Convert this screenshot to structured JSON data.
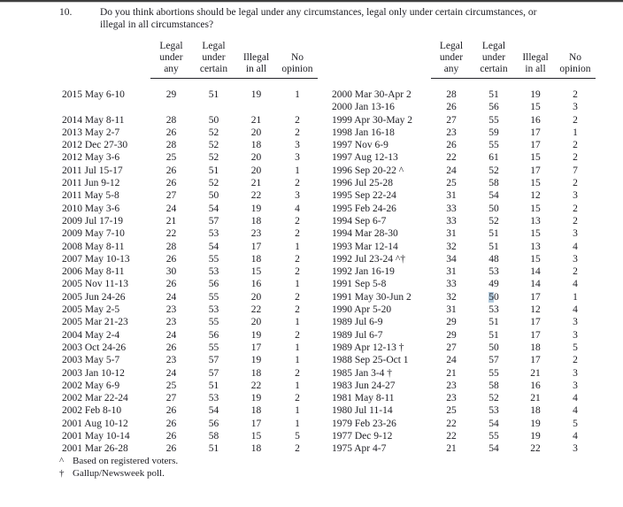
{
  "question": {
    "number": "10.",
    "text": "Do you think abortions should be legal under any circumstances, legal only under certain circumstances, or\nillegal in all circumstances?"
  },
  "columns": [
    {
      "label": "Legal\nunder\nany"
    },
    {
      "label": "Legal\nunder\ncertain"
    },
    {
      "label": "Illegal\nin all"
    },
    {
      "label": "No\nopinion"
    }
  ],
  "left_rows": [
    {
      "date": "2015 May 6-10",
      "values": [
        29,
        51,
        19,
        1
      ]
    },
    {
      "date": "",
      "values": [
        "",
        "",
        "",
        ""
      ]
    },
    {
      "date": "2014 May 8-11",
      "values": [
        28,
        50,
        21,
        2
      ]
    },
    {
      "date": "2013 May 2-7",
      "values": [
        26,
        52,
        20,
        2
      ]
    },
    {
      "date": "2012 Dec 27-30",
      "values": [
        28,
        52,
        18,
        3
      ]
    },
    {
      "date": "2012 May 3-6",
      "values": [
        25,
        52,
        20,
        3
      ]
    },
    {
      "date": "2011 Jul 15-17",
      "values": [
        26,
        51,
        20,
        1
      ]
    },
    {
      "date": "2011 Jun 9-12",
      "values": [
        26,
        52,
        21,
        2
      ]
    },
    {
      "date": "2011 May 5-8",
      "values": [
        27,
        50,
        22,
        3
      ]
    },
    {
      "date": "2010 May 3-6",
      "values": [
        24,
        54,
        19,
        4
      ]
    },
    {
      "date": "2009 Jul 17-19",
      "values": [
        21,
        57,
        18,
        2
      ]
    },
    {
      "date": "2009 May 7-10",
      "values": [
        22,
        53,
        23,
        2
      ]
    },
    {
      "date": "2008 May 8-11",
      "values": [
        28,
        54,
        17,
        1
      ]
    },
    {
      "date": "2007 May 10-13",
      "values": [
        26,
        55,
        18,
        2
      ]
    },
    {
      "date": "2006 May 8-11",
      "values": [
        30,
        53,
        15,
        2
      ]
    },
    {
      "date": "2005 Nov 11-13",
      "values": [
        26,
        56,
        16,
        1
      ]
    },
    {
      "date": "2005 Jun 24-26",
      "values": [
        24,
        55,
        20,
        2
      ]
    },
    {
      "date": "2005 May 2-5",
      "values": [
        23,
        53,
        22,
        2
      ]
    },
    {
      "date": "2005 Mar 21-23",
      "values": [
        23,
        55,
        20,
        1
      ]
    },
    {
      "date": "2004 May 2-4",
      "values": [
        24,
        56,
        19,
        2
      ]
    },
    {
      "date": "2003 Oct 24-26",
      "values": [
        26,
        55,
        17,
        1
      ]
    },
    {
      "date": "2003 May 5-7",
      "values": [
        23,
        57,
        19,
        1
      ]
    },
    {
      "date": "2003 Jan 10-12",
      "values": [
        24,
        57,
        18,
        2
      ]
    },
    {
      "date": "2002 May 6-9",
      "values": [
        25,
        51,
        22,
        1
      ]
    },
    {
      "date": "2002 Mar 22-24",
      "values": [
        27,
        53,
        19,
        2
      ]
    },
    {
      "date": "2002 Feb 8-10",
      "values": [
        26,
        54,
        18,
        1
      ]
    },
    {
      "date": "2001 Aug 10-12",
      "values": [
        26,
        56,
        17,
        1
      ]
    },
    {
      "date": "2001 May 10-14",
      "values": [
        26,
        58,
        15,
        5
      ]
    },
    {
      "date": "2001 Mar 26-28",
      "values": [
        26,
        51,
        18,
        2
      ]
    }
  ],
  "right_rows": [
    {
      "date": "2000 Mar 30-Apr 2",
      "values": [
        28,
        51,
        19,
        2
      ]
    },
    {
      "date": "2000 Jan 13-16",
      "values": [
        26,
        56,
        15,
        3
      ]
    },
    {
      "date": "1999 Apr 30-May 2",
      "values": [
        27,
        55,
        16,
        2
      ]
    },
    {
      "date": "1998 Jan 16-18",
      "values": [
        23,
        59,
        17,
        1
      ]
    },
    {
      "date": "1997 Nov 6-9",
      "values": [
        26,
        55,
        17,
        2
      ]
    },
    {
      "date": "1997 Aug 12-13",
      "values": [
        22,
        61,
        15,
        2
      ]
    },
    {
      "date": "1996 Sep 20-22 ^",
      "values": [
        24,
        52,
        17,
        7
      ]
    },
    {
      "date": "1996 Jul 25-28",
      "values": [
        25,
        58,
        15,
        2
      ]
    },
    {
      "date": "1995 Sep 22-24",
      "values": [
        31,
        54,
        12,
        3
      ]
    },
    {
      "date": "1995 Feb 24-26",
      "values": [
        33,
        50,
        15,
        2
      ]
    },
    {
      "date": "1994 Sep 6-7",
      "values": [
        33,
        52,
        13,
        2
      ]
    },
    {
      "date": "1994 Mar 28-30",
      "values": [
        31,
        51,
        15,
        3
      ]
    },
    {
      "date": "1993 Mar 12-14",
      "values": [
        32,
        51,
        13,
        4
      ]
    },
    {
      "date": "1992 Jul 23-24 ^†",
      "values": [
        34,
        48,
        15,
        3
      ]
    },
    {
      "date": "1992 Jan 16-19",
      "values": [
        31,
        53,
        14,
        2
      ]
    },
    {
      "date": "1991 Sep 5-8",
      "values": [
        33,
        49,
        14,
        4
      ]
    },
    {
      "date": "1991 May 30-Jun 2",
      "values": [
        32,
        50,
        17,
        1
      ],
      "highlight_value_index": 1
    },
    {
      "date": "1990 Apr 5-20",
      "values": [
        31,
        53,
        12,
        4
      ]
    },
    {
      "date": "1989 Jul 6-9",
      "values": [
        29,
        51,
        17,
        3
      ]
    },
    {
      "date": "1989 Jul 6-7",
      "values": [
        29,
        51,
        17,
        3
      ]
    },
    {
      "date": "1989 Apr 12-13 †",
      "values": [
        27,
        50,
        18,
        5
      ]
    },
    {
      "date": "1988 Sep 25-Oct 1",
      "values": [
        24,
        57,
        17,
        2
      ]
    },
    {
      "date": "1985 Jan 3-4 †",
      "values": [
        21,
        55,
        21,
        3
      ]
    },
    {
      "date": "1983 Jun 24-27",
      "values": [
        23,
        58,
        16,
        3
      ]
    },
    {
      "date": "1981 May 8-11",
      "values": [
        23,
        52,
        21,
        4
      ]
    },
    {
      "date": "1980 Jul 11-14",
      "values": [
        25,
        53,
        18,
        4
      ]
    },
    {
      "date": "1979 Feb 23-26",
      "values": [
        22,
        54,
        19,
        5
      ]
    },
    {
      "date": "1977 Dec 9-12",
      "values": [
        22,
        55,
        19,
        4
      ]
    },
    {
      "date": "1975 Apr 4-7",
      "values": [
        21,
        54,
        22,
        3
      ]
    }
  ],
  "footnotes": [
    {
      "symbol": "^",
      "text": "Based on registered voters."
    },
    {
      "symbol": "†",
      "text": "Gallup/Newsweek poll."
    }
  ],
  "colors": {
    "text": "#1c1c22",
    "selection_highlight": "#b3cbdd",
    "top_edge": "#3f3f3f"
  }
}
